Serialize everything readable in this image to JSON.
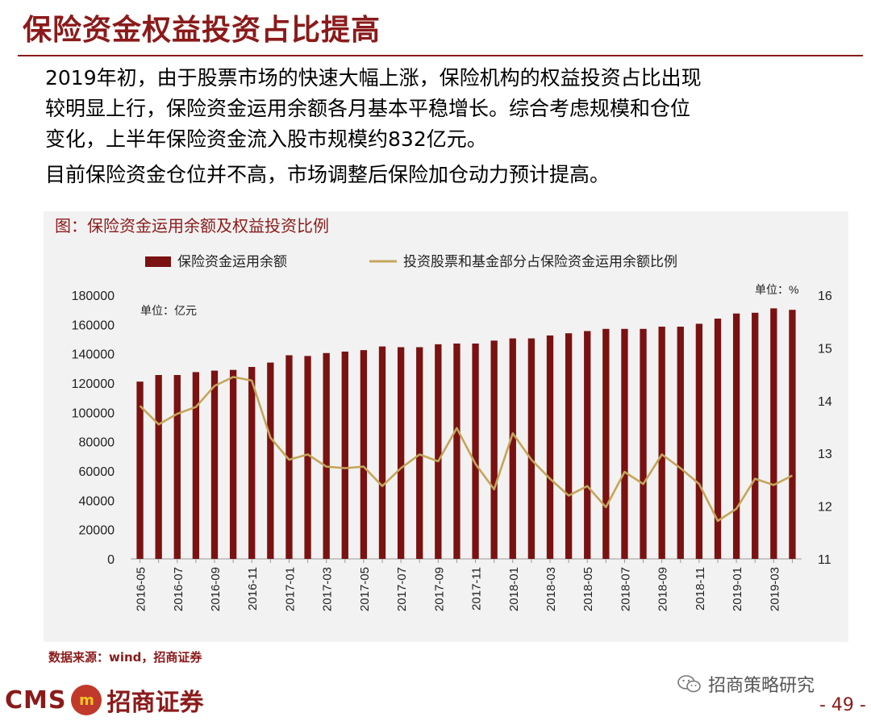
{
  "slide": {
    "title": "保险资金权益投资占比提高",
    "paragraph1": [
      "2019年初，由于股票市场的快速大幅上涨，保险机构的权益投资占比出现",
      "较明显上行，保险资金运用余额各月基本平稳增长。综合考虑规模和仓位",
      "变化，上半年保险资金流入股市规模约832亿元。"
    ],
    "paragraph2": "目前保险资金仓位并不高，市场调整后保险加仓动力预计提高。",
    "chart_caption": "图：保险资金运用余额及权益投资比例",
    "source": "数据来源：wind，招商证券",
    "logo_text": "CMS",
    "logo_emblem": "m",
    "brand": "招商证券",
    "wechat": "招商策略研究",
    "page_number": "- 49 -"
  },
  "colors": {
    "bar": "#7a1212",
    "line": "#c4a55a",
    "accent": "#8b1a1a"
  },
  "chart_data": {
    "type": "bar+line",
    "categories": [
      "2016-05",
      "2016-06",
      "2016-07",
      "2016-08",
      "2016-09",
      "2016-10",
      "2016-11",
      "2016-12",
      "2017-01",
      "2017-02",
      "2017-03",
      "2017-04",
      "2017-05",
      "2017-06",
      "2017-07",
      "2017-08",
      "2017-09",
      "2017-10",
      "2017-11",
      "2017-12",
      "2018-01",
      "2018-02",
      "2018-03",
      "2018-04",
      "2018-05",
      "2018-06",
      "2018-07",
      "2018-08",
      "2018-09",
      "2018-10",
      "2018-11",
      "2018-12",
      "2019-01",
      "2019-02",
      "2019-03",
      "2019-04"
    ],
    "tick_labels": [
      "2016-05",
      "2016-07",
      "2016-09",
      "2016-11",
      "2017-01",
      "2017-03",
      "2017-05",
      "2017-07",
      "2017-09",
      "2017-11",
      "2018-01",
      "2018-03",
      "2018-05",
      "2018-07",
      "2018-09",
      "2018-11",
      "2019-01",
      "2019-03"
    ],
    "series": [
      {
        "name": "保险资金运用余额",
        "kind": "bar",
        "axis": "left",
        "values": [
          121000,
          125500,
          125500,
          127500,
          128500,
          129000,
          131000,
          134000,
          139000,
          138500,
          140500,
          141500,
          142500,
          145000,
          144500,
          144500,
          146500,
          147000,
          147000,
          149000,
          150500,
          150500,
          152500,
          154000,
          155500,
          157000,
          157000,
          157000,
          158500,
          158500,
          160500,
          164000,
          167500,
          168000,
          171000,
          170000
        ]
      },
      {
        "name": "投资股票和基金部分占保险资金运用余额比例",
        "kind": "line",
        "axis": "right",
        "values": [
          13.9,
          13.55,
          13.75,
          13.88,
          14.28,
          14.45,
          14.38,
          13.3,
          12.88,
          12.98,
          12.75,
          12.72,
          12.75,
          12.38,
          12.72,
          12.98,
          12.85,
          13.48,
          12.8,
          12.32,
          13.38,
          12.88,
          12.52,
          12.2,
          12.38,
          11.98,
          12.65,
          12.42,
          12.98,
          12.72,
          12.42,
          11.72,
          11.95,
          12.52,
          12.4,
          12.58
        ]
      }
    ],
    "y_left": {
      "min": 0,
      "max": 180000,
      "step": 20000,
      "unit": "单位：亿元"
    },
    "y_right": {
      "min": 11,
      "max": 16,
      "step": 1,
      "unit": "单位：%"
    },
    "legend_position": "top",
    "grid": false
  }
}
